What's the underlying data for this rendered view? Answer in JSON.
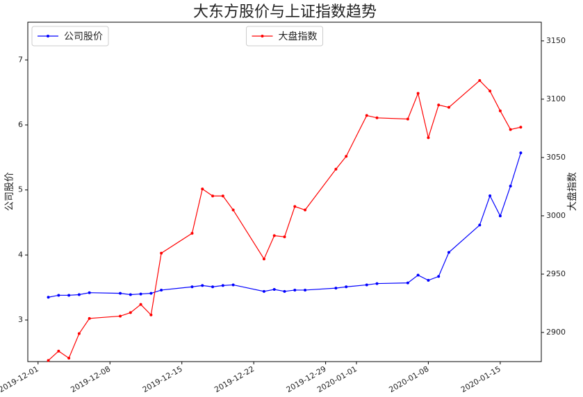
{
  "chart_data": {
    "type": "line",
    "title": "大东方股价与上证指数趋势",
    "ylabel": "公司股价",
    "y2label": "大盘指数",
    "x": [
      "2019-12-02",
      "2019-12-03",
      "2019-12-04",
      "2019-12-05",
      "2019-12-06",
      "2019-12-09",
      "2019-12-10",
      "2019-12-11",
      "2019-12-12",
      "2019-12-13",
      "2019-12-16",
      "2019-12-17",
      "2019-12-18",
      "2019-12-19",
      "2019-12-20",
      "2019-12-23",
      "2019-12-24",
      "2019-12-25",
      "2019-12-26",
      "2019-12-27",
      "2019-12-30",
      "2019-12-31",
      "2020-01-02",
      "2020-01-03",
      "2020-01-06",
      "2020-01-07",
      "2020-01-08",
      "2020-01-09",
      "2020-01-10",
      "2020-01-13",
      "2020-01-14",
      "2020-01-15",
      "2020-01-16",
      "2020-01-17"
    ],
    "series": [
      {
        "name": "公司股价",
        "color": "#0000ff",
        "legend": "upper left",
        "values": [
          3.35,
          3.38,
          3.38,
          3.39,
          3.42,
          3.41,
          3.39,
          3.4,
          3.41,
          3.46,
          3.51,
          3.53,
          3.51,
          3.53,
          3.54,
          3.44,
          3.47,
          3.44,
          3.46,
          3.46,
          3.49,
          3.51,
          3.54,
          3.56,
          3.57,
          3.69,
          3.61,
          3.67,
          4.04,
          4.46,
          4.91,
          4.6,
          5.06,
          5.57
        ]
      },
      {
        "name": "大盘指数",
        "color": "#ff0000",
        "axis": "y2",
        "legend": "upper center",
        "values": [
          2876,
          2884,
          2878,
          2899,
          2912,
          2914,
          2917,
          2924,
          2915,
          2968,
          2985,
          3023,
          3017,
          3017,
          3005,
          2963,
          2983,
          2982,
          3008,
          3005,
          3040,
          3051,
          3086,
          3084,
          3083,
          3105,
          3067,
          3095,
          3093,
          3116,
          3107,
          3090,
          3074,
          3076
        ]
      }
    ],
    "xlim": [
      "2019-11-30",
      "2020-01-19"
    ],
    "xticks": [
      "2019-12-01",
      "2019-12-08",
      "2019-12-15",
      "2019-12-22",
      "2019-12-29",
      "2020-01-01",
      "2020-01-08",
      "2020-01-15"
    ],
    "ylim": [
      2.36,
      7.58
    ],
    "yticks": [
      3,
      4,
      5,
      6,
      7
    ],
    "y2lim": [
      2875,
      3166
    ],
    "y2ticks": [
      2900,
      2950,
      3000,
      3050,
      3100,
      3150
    ]
  }
}
